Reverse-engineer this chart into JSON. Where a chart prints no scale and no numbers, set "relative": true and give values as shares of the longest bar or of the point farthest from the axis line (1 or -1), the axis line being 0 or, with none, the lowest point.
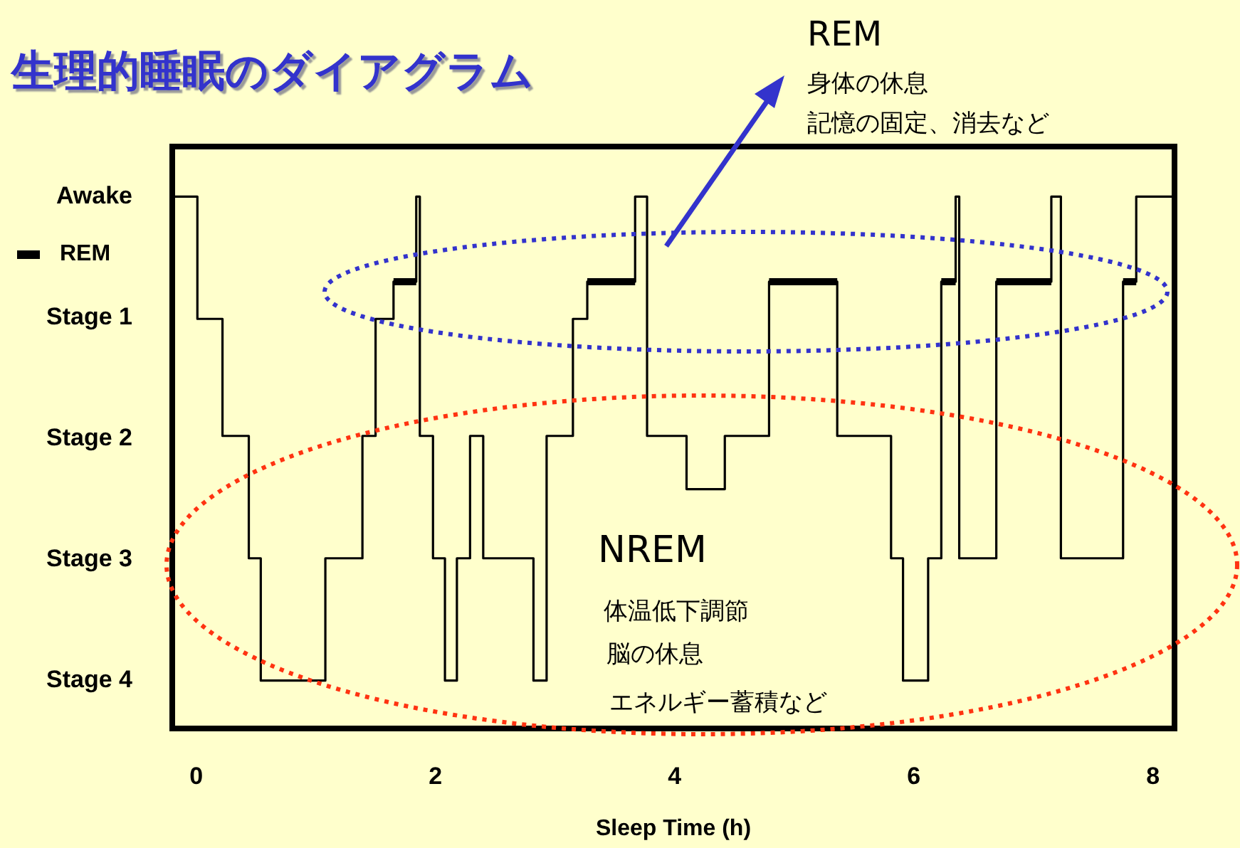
{
  "chart_data": {
    "type": "step",
    "title": "生理的睡眠のダイアグラム",
    "xlabel": "Sleep Time (h)",
    "x": [
      -0.2,
      0.01,
      0.22,
      0.44,
      0.54,
      1.08,
      1.39,
      1.5,
      1.65,
      1.84,
      1.87,
      1.98,
      2.08,
      2.18,
      2.29,
      2.4,
      2.82,
      2.93,
      3.15,
      3.27,
      3.67,
      3.77,
      4.1,
      4.42,
      4.79,
      5.36,
      5.81,
      5.91,
      6.12,
      6.23,
      6.35,
      6.38,
      6.69,
      7.15,
      7.23,
      7.75,
      7.86,
      8.18
    ],
    "series": [
      {
        "color": "#000000",
        "values": [
          1,
          0.77,
          0.55,
          0.32,
          0.09,
          0.32,
          0.55,
          0.77,
          0.84,
          1,
          0.55,
          0.32,
          0.09,
          0.32,
          0.55,
          0.32,
          0.09,
          0.55,
          0.77,
          0.84,
          1,
          0.55,
          0.45,
          0.55,
          0.84,
          0.55,
          0.32,
          0.09,
          0.32,
          0.84,
          1,
          0.32,
          0.84,
          1,
          0.32,
          0.84,
          1,
          1
        ]
      },
      {
        "name": "REM",
        "color": "#000000",
        "x": [
          1.65,
          1.84,
          1.845,
          3.27,
          3.67,
          3.675,
          4.79,
          5.36,
          5.365,
          6.23,
          6.35,
          6.355,
          6.69,
          7.15,
          7.155,
          7.75,
          7.86
        ],
        "values": [
          0.84,
          0.84,
          null,
          0.84,
          0.84,
          null,
          0.84,
          0.84,
          null,
          0.84,
          0.84,
          null,
          0.84,
          0.84,
          null,
          0.84,
          0.84
        ]
      }
    ],
    "relative": true,
    "xlim": [
      -0.2,
      8.18
    ],
    "xticks": [
      0,
      2,
      4,
      6,
      8
    ],
    "y_categories": [
      "Awake",
      "Stage 1",
      "Stage 2",
      "Stage 3",
      "Stage 4"
    ],
    "grid": false,
    "legend": "left",
    "annotations": [
      "REM",
      "身体の休息",
      "記憶の固定、消去など",
      "NREM",
      "体温低下調節",
      "脳の休息",
      "エネルギー蓄積など"
    ]
  }
}
